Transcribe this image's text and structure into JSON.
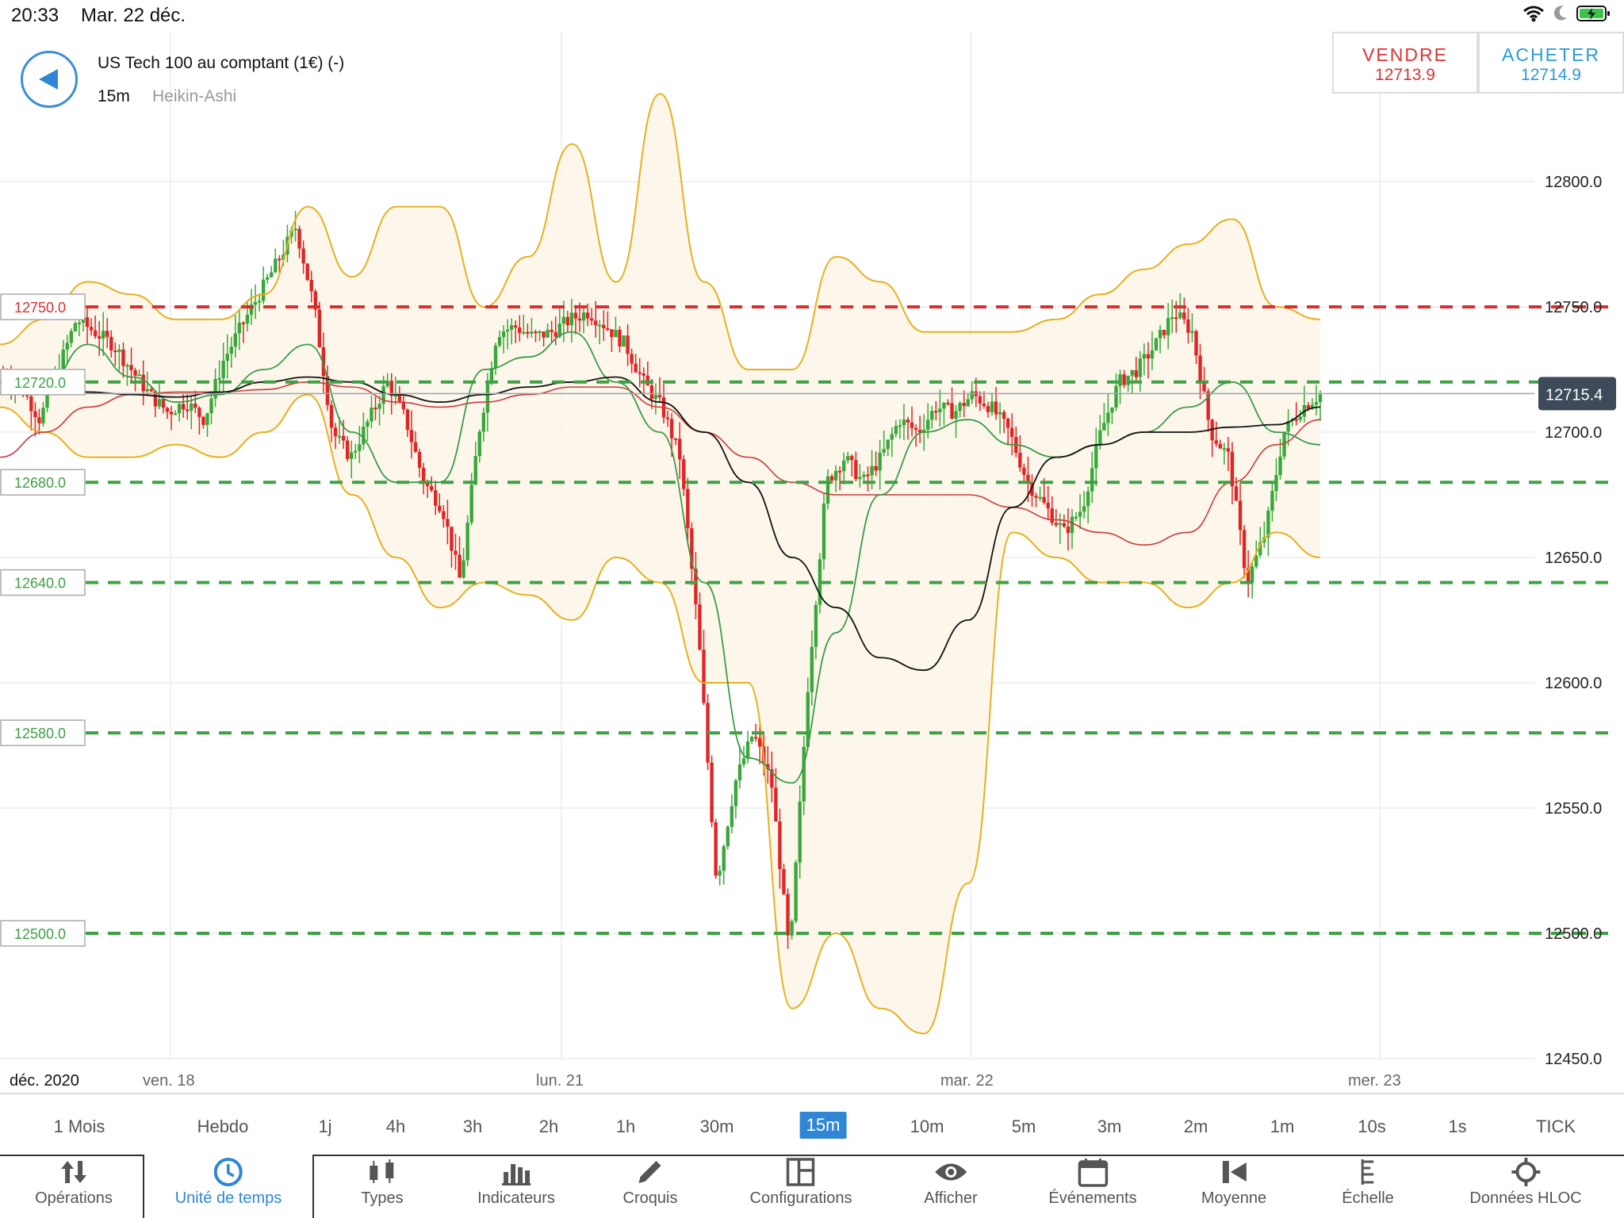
{
  "status_bar": {
    "time": "20:33",
    "date": "Mar. 22 déc."
  },
  "header": {
    "instrument": "US Tech 100 au comptant (1€) (-)",
    "timeframe": "15m",
    "chart_type": "Heikin-Ashi"
  },
  "quotes": {
    "sell_label": "VENDRE",
    "sell_price": "12713.9",
    "buy_label": "ACHETER",
    "buy_price": "12714.9"
  },
  "colors": {
    "up": "#38a83a",
    "down": "#e02525",
    "bollinger": "#e6b020",
    "ma_green": "#3a9a4a",
    "ma_red": "#cc3a3a",
    "ma_black": "#111111",
    "active": "#2f86d5"
  },
  "chart_data": {
    "type": "candlestick",
    "y_range": [
      12450,
      12850
    ],
    "y_ticks": [
      "12800.0",
      "12750.0",
      "12700.0",
      "12650.0",
      "12600.0",
      "12550.0",
      "12500.0",
      "12450.0"
    ],
    "x_labels": [
      "déc. 2020",
      "ven. 18",
      "lun. 21",
      "mar. 22",
      "mer. 23"
    ],
    "current_price": {
      "value": 12715.4,
      "label": "12715.4"
    },
    "levels": [
      {
        "value": 12750,
        "label": "12750.0",
        "kind": "resistance"
      },
      {
        "value": 12720,
        "label": "12720.0",
        "kind": "support"
      },
      {
        "value": 12680,
        "label": "12680.0",
        "kind": "support"
      },
      {
        "value": 12640,
        "label": "12640.0",
        "kind": "support"
      },
      {
        "value": 12580,
        "label": "12580.0",
        "kind": "support"
      },
      {
        "value": 12500,
        "label": "12500.0",
        "kind": "support"
      }
    ],
    "price_path": [
      12722,
      12718,
      12705,
      12725,
      12745,
      12740,
      12735,
      12725,
      12715,
      12708,
      12712,
      12705,
      12728,
      12742,
      12755,
      12768,
      12782,
      12750,
      12700,
      12690,
      12705,
      12720,
      12705,
      12680,
      12670,
      12640,
      12700,
      12740,
      12742,
      12738,
      12740,
      12745,
      12748,
      12742,
      12735,
      12720,
      12710,
      12690,
      12620,
      12520,
      12560,
      12580,
      12560,
      12490,
      12600,
      12680,
      12690,
      12680,
      12690,
      12705,
      12700,
      12710,
      12708,
      12715,
      12710,
      12700,
      12680,
      12670,
      12660,
      12670,
      12700,
      12720,
      12725,
      12735,
      12748,
      12740,
      12700,
      12690,
      12640,
      12660,
      12700,
      12710,
      12715
    ],
    "bb_upper": [
      12735,
      12745,
      12760,
      12755,
      12745,
      12745,
      12755,
      12790,
      12762,
      12790,
      12790,
      12750,
      12770,
      12815,
      12760,
      12835,
      12760,
      12725,
      12725,
      12770,
      12760,
      12740,
      12740,
      12740,
      12745,
      12755,
      12765,
      12775,
      12785,
      12750,
      12745
    ],
    "bb_lower": [
      12710,
      12700,
      12690,
      12690,
      12695,
      12690,
      12700,
      12715,
      12675,
      12650,
      12630,
      12640,
      12635,
      12625,
      12650,
      12640,
      12600,
      12600,
      12470,
      12500,
      12470,
      12460,
      12520,
      12660,
      12650,
      12640,
      12640,
      12630,
      12640,
      12660,
      12650
    ],
    "ma_black": [
      12720,
      12718,
      12716,
      12715,
      12714,
      12716,
      12720,
      12722,
      12720,
      12715,
      12712,
      12715,
      12718,
      12720,
      12722,
      12712,
      12700,
      12680,
      12650,
      12630,
      12610,
      12605,
      12625,
      12670,
      12690,
      12695,
      12700,
      12700,
      12702,
      12703,
      12710
    ],
    "ma_red": [
      12690,
      12700,
      12710,
      12715,
      12716,
      12716,
      12717,
      12720,
      12718,
      12712,
      12710,
      12712,
      12715,
      12718,
      12718,
      12710,
      12700,
      12690,
      12680,
      12675,
      12675,
      12675,
      12675,
      12670,
      12665,
      12660,
      12655,
      12660,
      12680,
      12695,
      12705
    ],
    "ma_green": [
      12720,
      12718,
      12735,
      12722,
      12712,
      12715,
      12725,
      12735,
      12700,
      12680,
      12680,
      12725,
      12730,
      12740,
      12720,
      12700,
      12640,
      12570,
      12560,
      12620,
      12675,
      12700,
      12705,
      12695,
      12690,
      12695,
      12700,
      12710,
      12720,
      12700,
      12695
    ]
  },
  "timeframes": [
    "1 Mois",
    "Hebdo",
    "1j",
    "4h",
    "3h",
    "2h",
    "1h",
    "30m",
    "15m",
    "10m",
    "5m",
    "3m",
    "2m",
    "1m",
    "10s",
    "1s",
    "TICK"
  ],
  "active_timeframe": "15m",
  "toolbar": [
    {
      "label": "Opérations",
      "icon": "updown-arrows-icon"
    },
    {
      "label": "Unité de temps",
      "icon": "clock-icon"
    },
    {
      "label": "Types",
      "icon": "candles-icon"
    },
    {
      "label": "Indicateurs",
      "icon": "bar-chart-icon"
    },
    {
      "label": "Croquis",
      "icon": "pencil-icon"
    },
    {
      "label": "Configurations",
      "icon": "layout-icon"
    },
    {
      "label": "Afficher",
      "icon": "eye-icon"
    },
    {
      "label": "Événements",
      "icon": "calendar-icon"
    },
    {
      "label": "Moyenne",
      "icon": "average-icon"
    },
    {
      "label": "Échelle",
      "icon": "scale-icon"
    },
    {
      "label": "Données HLOC",
      "icon": "crosshair-icon"
    }
  ],
  "active_toolbar": "Unité de temps"
}
